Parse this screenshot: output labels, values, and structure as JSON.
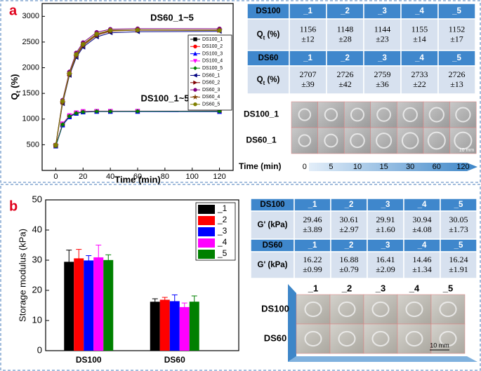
{
  "panels": [
    "a",
    "b"
  ],
  "chart_data": [
    {
      "type": "line",
      "annotations": [
        "DS60_1~5",
        "DS100_1~5"
      ],
      "xlabel": "Time (min)",
      "ylabel": [
        "Q",
        "t",
        " (%)"
      ],
      "x": [
        0,
        5,
        10,
        15,
        20,
        30,
        40,
        60,
        120
      ],
      "xlim": [
        -10,
        130
      ],
      "xticks": [
        0,
        20,
        40,
        60,
        80,
        100,
        120
      ],
      "ylim": [
        0,
        3250
      ],
      "yticks": [
        500,
        1000,
        1500,
        2000,
        2500,
        3000
      ],
      "legend": "center right",
      "series": [
        {
          "name": "DS100_1",
          "color": "#000000",
          "marker": "square",
          "values": [
            480,
            890,
            1050,
            1110,
            1140,
            1150,
            1150,
            1152,
            1156
          ]
        },
        {
          "name": "DS100_2",
          "color": "#ff0000",
          "marker": "circle",
          "values": [
            490,
            900,
            1060,
            1120,
            1145,
            1150,
            1148,
            1150,
            1148
          ]
        },
        {
          "name": "DS100_3",
          "color": "#0000ff",
          "marker": "triangle",
          "values": [
            470,
            880,
            1040,
            1110,
            1135,
            1145,
            1145,
            1145,
            1144
          ]
        },
        {
          "name": "DS100_4",
          "color": "#ff00ff",
          "marker": "down",
          "values": [
            485,
            910,
            1070,
            1125,
            1150,
            1155,
            1155,
            1156,
            1155
          ]
        },
        {
          "name": "DS100_5",
          "color": "#008000",
          "marker": "diamond",
          "values": [
            475,
            895,
            1055,
            1115,
            1140,
            1150,
            1150,
            1152,
            1152
          ]
        },
        {
          "name": "DS60_1",
          "color": "#000080",
          "marker": "left",
          "values": [
            480,
            1300,
            1850,
            2200,
            2400,
            2600,
            2680,
            2700,
            2707
          ]
        },
        {
          "name": "DS60_2",
          "color": "#800000",
          "marker": "right",
          "values": [
            490,
            1340,
            1880,
            2250,
            2450,
            2650,
            2720,
            2730,
            2726
          ]
        },
        {
          "name": "DS60_3",
          "color": "#800080",
          "marker": "circle",
          "values": [
            500,
            1370,
            1920,
            2290,
            2490,
            2690,
            2750,
            2760,
            2759
          ]
        },
        {
          "name": "DS60_4",
          "color": "#804000",
          "marker": "star",
          "values": [
            485,
            1320,
            1870,
            2230,
            2430,
            2630,
            2710,
            2735,
            2733
          ]
        },
        {
          "name": "DS60_5",
          "color": "#808000",
          "marker": "circle",
          "values": [
            495,
            1350,
            1890,
            2260,
            2460,
            2660,
            2730,
            2735,
            2726
          ]
        }
      ]
    },
    {
      "type": "bar",
      "ylabel": "Storage modulus (kPa)",
      "categories": [
        "DS100",
        "DS60"
      ],
      "ylim": [
        0,
        50
      ],
      "yticks": [
        0,
        10,
        20,
        30,
        40,
        50
      ],
      "legend": "upper right",
      "series": [
        {
          "name": "_1",
          "color": "#000000",
          "values": [
            29.46,
            16.22
          ],
          "errors": [
            3.89,
            0.99
          ]
        },
        {
          "name": "_2",
          "color": "#ff0000",
          "values": [
            30.61,
            16.88
          ],
          "errors": [
            2.97,
            0.79
          ]
        },
        {
          "name": "_3",
          "color": "#0000ff",
          "values": [
            29.91,
            16.41
          ],
          "errors": [
            1.6,
            2.09
          ]
        },
        {
          "name": "_4",
          "color": "#ff00ff",
          "values": [
            30.94,
            14.46
          ],
          "errors": [
            4.08,
            1.34
          ]
        },
        {
          "name": "_5",
          "color": "#008000",
          "values": [
            30.05,
            16.24
          ],
          "errors": [
            1.73,
            1.91
          ]
        }
      ]
    }
  ],
  "tables": [
    {
      "rows": [
        [
          "DS100",
          "_1",
          "_2",
          "_3",
          "_4",
          "_5"
        ],
        [
          [
            "Q",
            "t",
            " (%)"
          ],
          [
            "1156",
            "±12"
          ],
          [
            "1148",
            "±28"
          ],
          [
            "1144",
            "±23"
          ],
          [
            "1155",
            "±14"
          ],
          [
            "1152",
            "±17"
          ]
        ],
        [
          "DS60",
          "_1",
          "_2",
          "_3",
          "_4",
          "_5"
        ],
        [
          [
            "Q",
            "t",
            " (%)"
          ],
          [
            "2707",
            "±39"
          ],
          [
            "2726",
            "±42"
          ],
          [
            "2759",
            "±36"
          ],
          [
            "2733",
            "±22"
          ],
          [
            "2726",
            "±13"
          ]
        ]
      ]
    },
    {
      "rows": [
        [
          "DS100",
          "_1",
          "_2",
          "_3",
          "_4",
          "_5"
        ],
        [
          "G' (kPa)",
          [
            "29.46",
            "±3.89"
          ],
          [
            "30.61",
            "±2.97"
          ],
          [
            "29.91",
            "±1.60"
          ],
          [
            "30.94",
            "±4.08"
          ],
          [
            "30.05",
            "±1.73"
          ]
        ],
        [
          "DS60",
          "_1",
          "_2",
          "_3",
          "_4",
          "_5"
        ],
        [
          "G' (kPa)",
          [
            "16.22",
            "±0.99"
          ],
          [
            "16.88",
            "±0.79"
          ],
          [
            "16.41",
            "±2.09"
          ],
          [
            "14.46",
            "±1.34"
          ],
          [
            "16.24",
            "±1.91"
          ]
        ]
      ]
    }
  ],
  "photos": [
    {
      "row_labels": [
        "DS100_1",
        "DS60_1"
      ],
      "scale": "10 mm",
      "axis_label": "Time (min)",
      "times": [
        "0",
        "5",
        "10",
        "15",
        "30",
        "60",
        "120"
      ]
    },
    {
      "col_labels": [
        "_1",
        "_2",
        "_3",
        "_4",
        "_5"
      ],
      "row_labels": [
        "DS100",
        "DS60"
      ],
      "scale": "10 mm"
    }
  ]
}
